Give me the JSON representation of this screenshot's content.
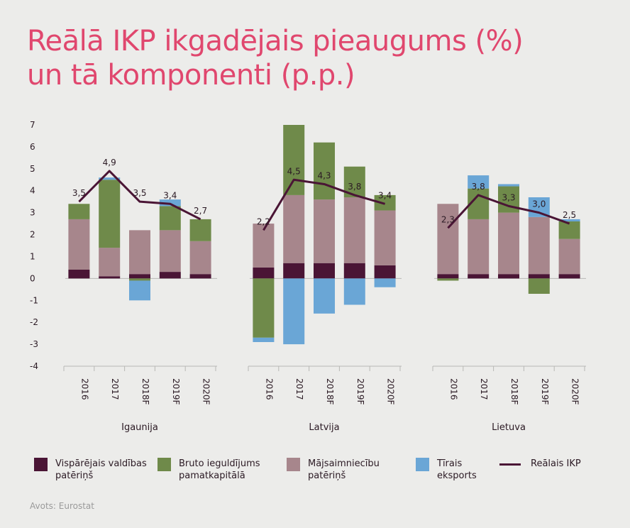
{
  "title_line1": "Reālā IKP ikgadējais pieaugums (%)",
  "title_line2": "un tā komponenti (p.p.)",
  "source": "Avots: Eurostat",
  "colors": {
    "title": "#e0476e",
    "government": "#4a1535",
    "investment": "#6f8a4a",
    "households": "#a7868c",
    "net_exports": "#6aa6d6",
    "gdp_line": "#4a1535"
  },
  "legend": [
    {
      "key": "government",
      "line1": "Vispārējais valdības",
      "line2": "patēriņš"
    },
    {
      "key": "investment",
      "line1": "Bruto ieguldījums",
      "line2": "pamatkapitālā"
    },
    {
      "key": "households",
      "line1": "Mājsaimniecību",
      "line2": "patēriņš"
    },
    {
      "key": "net_exports",
      "line1": "Tīrais",
      "line2": "eksports"
    },
    {
      "key": "gdp",
      "line1": "Reālais IKP",
      "line2": ""
    }
  ],
  "chart_data": {
    "type": "bar",
    "stacked": true,
    "ylim": [
      -4,
      7
    ],
    "yticks": [
      "7",
      "6",
      "5",
      "4",
      "3",
      "2",
      "1",
      "0",
      "-1",
      "-2",
      "-3",
      "-4"
    ],
    "ytick_values": [
      7,
      6,
      5,
      4,
      3,
      2,
      1,
      0,
      -1,
      -2,
      -3,
      -4
    ],
    "categories": [
      "2016",
      "2017",
      "2018F",
      "2019F",
      "2020F"
    ],
    "panels": [
      {
        "name": "Igaunija",
        "series": [
          {
            "name": "Vispārējais valdības patēriņš",
            "values": [
              0.4,
              0.1,
              0.2,
              0.3,
              0.2
            ]
          },
          {
            "name": "Mājsaimniecību patēriņš",
            "values": [
              2.3,
              1.3,
              2.0,
              1.9,
              1.5
            ]
          },
          {
            "name": "Bruto ieguldījums pamatkapitālā",
            "values": [
              0.7,
              3.1,
              -0.1,
              1.1,
              1.0
            ]
          },
          {
            "name": "Tīrais eksports",
            "values": [
              0.0,
              0.1,
              -0.9,
              0.3,
              0.0
            ]
          }
        ],
        "gdp": [
          3.5,
          4.9,
          3.5,
          3.4,
          2.7
        ],
        "gdp_labels": [
          "3,5",
          "4,9",
          "3,5",
          "3,4",
          "2,7"
        ]
      },
      {
        "name": "Latvija",
        "series": [
          {
            "name": "Vispārējais valdības patēriņš",
            "values": [
              0.5,
              0.7,
              0.7,
              0.7,
              0.6
            ]
          },
          {
            "name": "Mājsaimniecību patēriņš",
            "values": [
              2.0,
              3.1,
              2.9,
              3.0,
              2.5
            ]
          },
          {
            "name": "Bruto ieguldījums pamatkapitālā",
            "values": [
              -2.7,
              3.2,
              2.6,
              1.4,
              0.7
            ]
          },
          {
            "name": "Tīrais eksports",
            "values": [
              -0.2,
              -3.0,
              -1.6,
              -1.2,
              -0.4
            ]
          }
        ],
        "gdp": [
          2.2,
          4.5,
          4.3,
          3.8,
          3.4
        ],
        "gdp_labels": [
          "2,2",
          "4,5",
          "4,3",
          "3,8",
          "3,4"
        ]
      },
      {
        "name": "Lietuva",
        "series": [
          {
            "name": "Vispārējais valdības patēriņš",
            "values": [
              0.2,
              0.2,
              0.2,
              0.2,
              0.2
            ]
          },
          {
            "name": "Mājsaimniecību patēriņš",
            "values": [
              3.2,
              2.5,
              2.8,
              2.6,
              1.6
            ]
          },
          {
            "name": "Bruto ieguldījums pamatkapitālā",
            "values": [
              -0.1,
              1.4,
              1.2,
              -0.7,
              0.8
            ]
          },
          {
            "name": "Tīrais eksports",
            "values": [
              0.0,
              0.6,
              0.1,
              0.9,
              0.1
            ]
          }
        ],
        "gdp": [
          2.3,
          3.8,
          3.3,
          3.0,
          2.5
        ],
        "gdp_labels": [
          "2,3",
          "3,8",
          "3,3",
          "3,0",
          "2,5"
        ]
      }
    ]
  }
}
